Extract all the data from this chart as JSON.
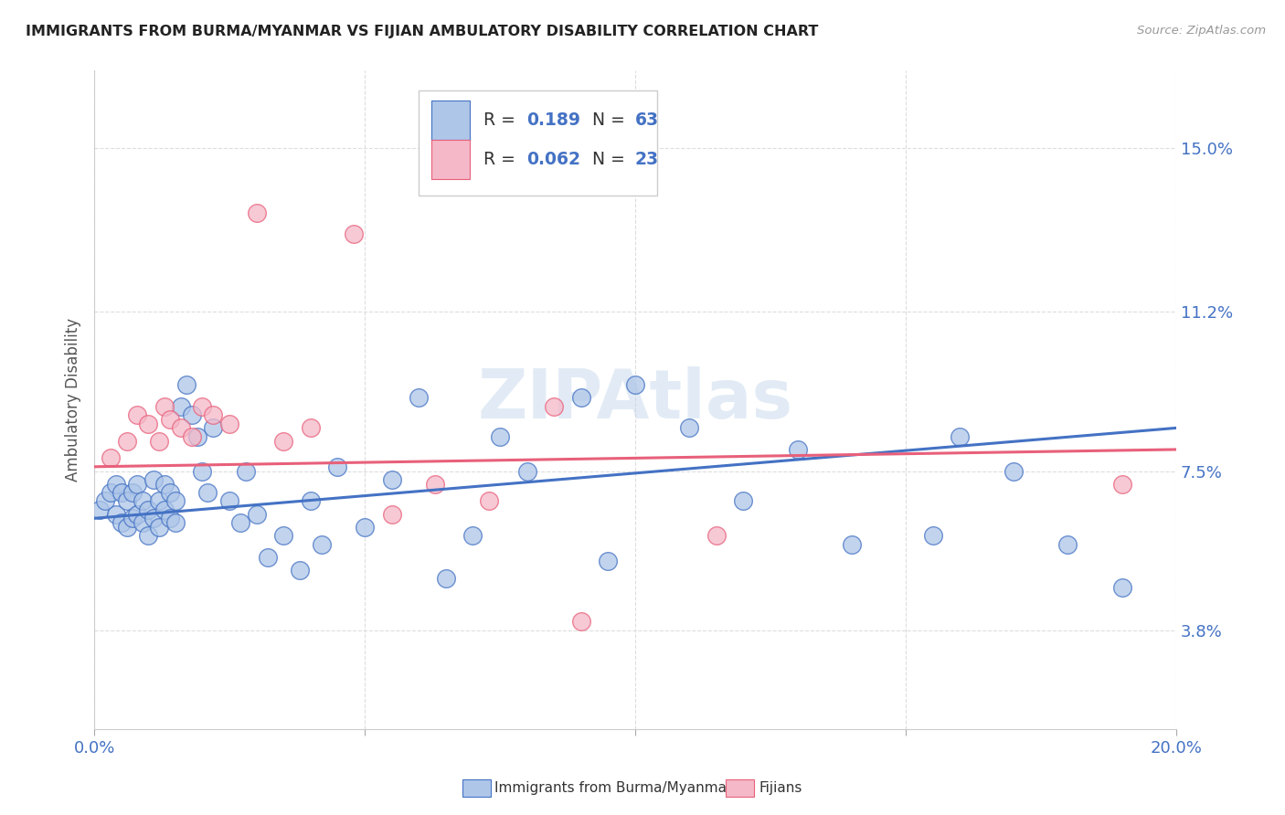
{
  "title": "IMMIGRANTS FROM BURMA/MYANMAR VS FIJIAN AMBULATORY DISABILITY CORRELATION CHART",
  "source": "Source: ZipAtlas.com",
  "ylabel": "Ambulatory Disability",
  "yticks": [
    0.038,
    0.075,
    0.112,
    0.15
  ],
  "ytick_labels": [
    "3.8%",
    "7.5%",
    "11.2%",
    "15.0%"
  ],
  "xlim": [
    0.0,
    0.2
  ],
  "ylim": [
    0.015,
    0.168
  ],
  "legend_blue_R": "0.189",
  "legend_blue_N": "63",
  "legend_pink_R": "0.062",
  "legend_pink_N": "23",
  "legend_label_blue": "Immigrants from Burma/Myanmar",
  "legend_label_pink": "Fijians",
  "watermark": "ZIPAtlas",
  "blue_color": "#aec6e8",
  "pink_color": "#f4b8c8",
  "line_blue": "#4472c4",
  "line_pink": "#e8607a",
  "blue_scatter_x": [
    0.001,
    0.002,
    0.003,
    0.004,
    0.004,
    0.005,
    0.005,
    0.006,
    0.006,
    0.007,
    0.007,
    0.008,
    0.008,
    0.009,
    0.009,
    0.01,
    0.01,
    0.011,
    0.011,
    0.012,
    0.012,
    0.013,
    0.013,
    0.014,
    0.014,
    0.015,
    0.015,
    0.016,
    0.017,
    0.018,
    0.019,
    0.02,
    0.021,
    0.022,
    0.025,
    0.027,
    0.028,
    0.03,
    0.032,
    0.035,
    0.038,
    0.04,
    0.042,
    0.045,
    0.05,
    0.055,
    0.06,
    0.065,
    0.07,
    0.075,
    0.08,
    0.09,
    0.095,
    0.1,
    0.11,
    0.12,
    0.13,
    0.14,
    0.155,
    0.16,
    0.17,
    0.18,
    0.19
  ],
  "blue_scatter_y": [
    0.066,
    0.068,
    0.07,
    0.065,
    0.072,
    0.063,
    0.07,
    0.062,
    0.068,
    0.064,
    0.07,
    0.065,
    0.072,
    0.063,
    0.068,
    0.06,
    0.066,
    0.064,
    0.073,
    0.062,
    0.068,
    0.066,
    0.072,
    0.064,
    0.07,
    0.063,
    0.068,
    0.09,
    0.095,
    0.088,
    0.083,
    0.075,
    0.07,
    0.085,
    0.068,
    0.063,
    0.075,
    0.065,
    0.055,
    0.06,
    0.052,
    0.068,
    0.058,
    0.076,
    0.062,
    0.073,
    0.092,
    0.05,
    0.06,
    0.083,
    0.075,
    0.092,
    0.054,
    0.095,
    0.085,
    0.068,
    0.08,
    0.058,
    0.06,
    0.083,
    0.075,
    0.058,
    0.048
  ],
  "pink_scatter_x": [
    0.003,
    0.006,
    0.008,
    0.01,
    0.012,
    0.013,
    0.014,
    0.016,
    0.018,
    0.02,
    0.022,
    0.025,
    0.03,
    0.035,
    0.04,
    0.048,
    0.055,
    0.063,
    0.073,
    0.085,
    0.09,
    0.115,
    0.19
  ],
  "pink_scatter_y": [
    0.078,
    0.082,
    0.088,
    0.086,
    0.082,
    0.09,
    0.087,
    0.085,
    0.083,
    0.09,
    0.088,
    0.086,
    0.135,
    0.082,
    0.085,
    0.13,
    0.065,
    0.072,
    0.068,
    0.09,
    0.04,
    0.06,
    0.072
  ],
  "blue_line_start_y": 0.064,
  "blue_line_end_y": 0.085,
  "pink_line_start_y": 0.076,
  "pink_line_end_y": 0.08
}
